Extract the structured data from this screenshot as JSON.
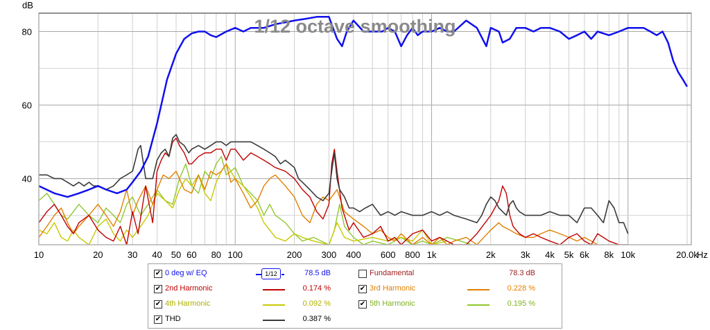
{
  "chart_data": {
    "type": "line",
    "title": "1/12 octave smoothing",
    "ylabel": "dB",
    "xlabel": "Hz",
    "x_scale": "log",
    "xlim": [
      10,
      21000
    ],
    "ylim": [
      22,
      85
    ],
    "y_ticks": [
      "40",
      "60",
      "80"
    ],
    "x_tick_labels": [
      {
        "f": 10,
        "t": "10"
      },
      {
        "f": 20,
        "t": "20"
      },
      {
        "f": 30,
        "t": "30"
      },
      {
        "f": 40,
        "t": "40"
      },
      {
        "f": 50,
        "t": "50"
      },
      {
        "f": 60,
        "t": "60"
      },
      {
        "f": 80,
        "t": "80"
      },
      {
        "f": 100,
        "t": "100"
      },
      {
        "f": 200,
        "t": "200"
      },
      {
        "f": 300,
        "t": "300"
      },
      {
        "f": 400,
        "t": "400"
      },
      {
        "f": 600,
        "t": "600"
      },
      {
        "f": 800,
        "t": "800"
      },
      {
        "f": 1000,
        "t": "1k"
      },
      {
        "f": 2000,
        "t": "2k"
      },
      {
        "f": 3000,
        "t": "3k"
      },
      {
        "f": 4000,
        "t": "4k"
      },
      {
        "f": 5000,
        "t": "5k"
      },
      {
        "f": 6000,
        "t": "6k"
      },
      {
        "f": 8000,
        "t": "8k"
      },
      {
        "f": 10000,
        "t": "10k"
      },
      {
        "f": 20000,
        "t": "20.0k"
      }
    ],
    "grid": true,
    "series": [
      {
        "name": "0 deg w/ EQ",
        "color": "#1010ee",
        "width": 2.5,
        "x": [
          10,
          12,
          14,
          16,
          18,
          20,
          22,
          25,
          28,
          30,
          33,
          36,
          40,
          45,
          50,
          55,
          60,
          65,
          70,
          75,
          80,
          90,
          100,
          110,
          120,
          140,
          160,
          180,
          200,
          230,
          260,
          300,
          330,
          350,
          370,
          400,
          450,
          500,
          560,
          600,
          650,
          700,
          750,
          800,
          850,
          900,
          1000,
          1100,
          1200,
          1300,
          1500,
          1700,
          1900,
          2000,
          2200,
          2300,
          2500,
          2700,
          3000,
          3300,
          3600,
          4000,
          4500,
          5000,
          5500,
          6000,
          6500,
          7000,
          8000,
          9000,
          10000,
          11000,
          12000,
          13000,
          14000,
          15000,
          16000,
          17000,
          18000,
          19000,
          20000
        ],
        "y": [
          38,
          36,
          35,
          36,
          37,
          38,
          37,
          36,
          37,
          39,
          42,
          46,
          55,
          67,
          74,
          78,
          79.5,
          80,
          80,
          79,
          78.5,
          80,
          81,
          80,
          81,
          81,
          82,
          82.5,
          83,
          83.5,
          84,
          84,
          78,
          76,
          80,
          83,
          80,
          80,
          80,
          81,
          80,
          76,
          79,
          81,
          79,
          80,
          80,
          81,
          80,
          80,
          83,
          81,
          76,
          81,
          80,
          77,
          78,
          81,
          81,
          80,
          81,
          81,
          80,
          78,
          79,
          80,
          78,
          80,
          79,
          80,
          81,
          81,
          81,
          80,
          79,
          80,
          77,
          72,
          69,
          67,
          65
        ]
      },
      {
        "name": "THD",
        "color": "#3a3a3a",
        "width": 1.6,
        "x": [
          10,
          11,
          12,
          13,
          14,
          15,
          16,
          17,
          18,
          19,
          20,
          22,
          24,
          26,
          28,
          30,
          31,
          32,
          33,
          35,
          38,
          40,
          42,
          44,
          46,
          48,
          50,
          52,
          55,
          58,
          60,
          65,
          70,
          75,
          80,
          85,
          90,
          95,
          100,
          110,
          120,
          130,
          140,
          150,
          160,
          170,
          180,
          190,
          200,
          210,
          220,
          240,
          260,
          280,
          300,
          310,
          320,
          330,
          340,
          360,
          380,
          400,
          430,
          460,
          500,
          550,
          600,
          650,
          700,
          800,
          900,
          1000,
          1100,
          1200,
          1300,
          1500,
          1700,
          1800,
          1900,
          2000,
          2100,
          2200,
          2300,
          2400,
          2500,
          2600,
          2700,
          2800,
          3000,
          3300,
          3600,
          4000,
          4500,
          5000,
          5500,
          6000,
          6500,
          7000,
          7500,
          8000,
          8500,
          9000,
          9500,
          10000
        ],
        "y": [
          41,
          41,
          40,
          40,
          39,
          38,
          39,
          38,
          39,
          38,
          38,
          37,
          38,
          40,
          41,
          42,
          45,
          48,
          49,
          40,
          40,
          45,
          47,
          48,
          46,
          51,
          52,
          50,
          49,
          47,
          48,
          49,
          48,
          49,
          50,
          50,
          49,
          50,
          50,
          50,
          50,
          49,
          48,
          47,
          46,
          44,
          45,
          44,
          43,
          40,
          39,
          37,
          35,
          34,
          36,
          42,
          47,
          40,
          37,
          35,
          32,
          32,
          31,
          32,
          33,
          30,
          31,
          30,
          31,
          30,
          30,
          31,
          30,
          31,
          30,
          29,
          28,
          30,
          33,
          35,
          34,
          32,
          31,
          30,
          33,
          34,
          32,
          31,
          30,
          30,
          30,
          31,
          30,
          30,
          28,
          32,
          32,
          30,
          28,
          34,
          32,
          28,
          28,
          25
        ]
      },
      {
        "name": "2nd Harmonic",
        "color": "#c00000",
        "width": 1.4,
        "x": [
          10,
          11,
          12,
          13,
          14,
          15,
          16,
          18,
          20,
          22,
          24,
          26,
          28,
          30,
          32,
          35,
          38,
          40,
          42,
          44,
          46,
          48,
          50,
          52,
          55,
          58,
          60,
          65,
          70,
          75,
          80,
          85,
          90,
          95,
          100,
          110,
          120,
          130,
          140,
          150,
          160,
          180,
          200,
          220,
          240,
          260,
          280,
          300,
          310,
          320,
          330,
          350,
          380,
          400,
          450,
          500,
          550,
          600,
          650,
          700,
          800,
          900,
          1000,
          1100,
          1200,
          1300,
          1500,
          1700,
          2000,
          2200,
          2300,
          2400,
          2500,
          2600,
          2800,
          3000,
          3300,
          3600,
          4000,
          4500,
          5000,
          5500,
          6000,
          6500,
          7000,
          8000,
          9000,
          10000
        ],
        "y": [
          28,
          31,
          33,
          30,
          27,
          25,
          28,
          30,
          26,
          24,
          23,
          27,
          22,
          31,
          25,
          38,
          28,
          42,
          45,
          47,
          46,
          50,
          51,
          49,
          47,
          44,
          44,
          46,
          47,
          47,
          48,
          48,
          45,
          48,
          48,
          45,
          47,
          46,
          45,
          44,
          43,
          42,
          40,
          37,
          35,
          31,
          29,
          33,
          44,
          48,
          42,
          32,
          26,
          28,
          24,
          25,
          27,
          23,
          24,
          22,
          25,
          26,
          23,
          24,
          23,
          22,
          22,
          25,
          30,
          34,
          38,
          36,
          30,
          27,
          25,
          24,
          25,
          24,
          23,
          22,
          24,
          25,
          23,
          22,
          25,
          23,
          22,
          22
        ]
      },
      {
        "name": "3rd Harmonic",
        "color": "#e08000",
        "width": 1.4,
        "x": [
          10,
          11,
          12,
          13,
          14,
          15,
          16,
          18,
          20,
          22,
          24,
          26,
          28,
          30,
          32,
          35,
          38,
          40,
          43,
          46,
          50,
          55,
          60,
          65,
          70,
          75,
          80,
          85,
          90,
          95,
          100,
          110,
          120,
          130,
          140,
          150,
          160,
          180,
          200,
          220,
          240,
          260,
          280,
          300,
          330,
          360,
          400,
          450,
          500,
          550,
          600,
          650,
          700,
          800,
          900,
          1000,
          1100,
          1200,
          1300,
          1500,
          1700,
          2000,
          2200,
          2300,
          2500,
          2700,
          3000,
          3300,
          3600,
          4000,
          4500,
          5000,
          5500,
          6000,
          6500,
          7000
        ],
        "y": [
          24,
          27,
          30,
          32,
          28,
          25,
          27,
          30,
          33,
          30,
          27,
          31,
          37,
          30,
          34,
          38,
          33,
          37,
          41,
          40,
          42,
          37,
          36,
          41,
          37,
          42,
          41,
          42,
          44,
          39,
          40,
          36,
          32,
          34,
          38,
          40,
          41,
          38,
          35,
          30,
          28,
          33,
          35,
          34,
          37,
          31,
          29,
          27,
          25,
          26,
          24,
          23,
          25,
          22,
          24,
          22,
          24,
          22,
          23,
          24,
          22,
          26,
          28,
          27,
          26,
          25,
          24,
          24,
          25,
          26,
          25,
          24,
          23,
          24,
          23,
          22
        ]
      },
      {
        "name": "4th Harmonic",
        "color": "#c8c800",
        "width": 1.4,
        "x": [
          10,
          11,
          12,
          13,
          14,
          15,
          16,
          18,
          20,
          22,
          24,
          26,
          28,
          30,
          33,
          36,
          40,
          44,
          48,
          52,
          56,
          60,
          65,
          70,
          75,
          80,
          85,
          90,
          100,
          110,
          120,
          130,
          140,
          150,
          160,
          180,
          200,
          220,
          250,
          300,
          330,
          360,
          400,
          500,
          600,
          700,
          800,
          900,
          1000,
          1200
        ],
        "y": [
          26,
          25,
          28,
          24,
          23,
          26,
          24,
          22,
          27,
          29,
          25,
          23,
          26,
          24,
          27,
          30,
          36,
          34,
          32,
          37,
          40,
          38,
          41,
          36,
          34,
          39,
          42,
          44,
          40,
          38,
          35,
          32,
          28,
          26,
          24,
          23,
          25,
          24,
          23,
          22,
          28,
          24,
          23,
          24,
          23,
          24,
          23,
          26,
          22,
          23
        ]
      },
      {
        "name": "5th Harmonic",
        "color": "#90c830",
        "width": 1.4,
        "x": [
          10,
          11,
          12,
          13,
          14,
          15,
          16,
          18,
          20,
          22,
          24,
          26,
          28,
          30,
          33,
          36,
          40,
          44,
          48,
          52,
          56,
          60,
          65,
          70,
          75,
          80,
          85,
          90,
          100,
          110,
          120,
          130,
          140,
          150,
          160,
          180,
          200,
          220,
          250,
          300,
          320,
          340,
          360,
          400,
          450,
          500,
          600,
          700,
          800,
          900,
          1000,
          1200,
          1400,
          1600
        ],
        "y": [
          34,
          36,
          33,
          30,
          29,
          31,
          33,
          30,
          28,
          32,
          30,
          28,
          33,
          35,
          30,
          33,
          37,
          34,
          33,
          40,
          44,
          38,
          36,
          42,
          40,
          44,
          46,
          41,
          43,
          38,
          36,
          34,
          30,
          33,
          30,
          28,
          25,
          23,
          24,
          22,
          26,
          33,
          27,
          24,
          22,
          23,
          22,
          24,
          22,
          23,
          22,
          24,
          23,
          22
        ]
      }
    ]
  },
  "legend": {
    "items": [
      {
        "label": "0 deg w/ EQ",
        "value": "78.5 dB",
        "color": "#1010ee",
        "checked": true
      },
      {
        "label": "Fundamental",
        "value": "78.3 dB",
        "color": "#a02020",
        "checked": false
      },
      {
        "label": "2nd Harmonic",
        "value": "0.174 %",
        "color": "#c00000",
        "checked": true
      },
      {
        "label": "3rd Harmonic",
        "value": "0.228 %",
        "color": "#e08000",
        "checked": true
      },
      {
        "label": "4th Harmonic",
        "value": "0.092 %",
        "color": "#b0b000",
        "checked": true
      },
      {
        "label": "5th Harmonic",
        "value": "0.195 %",
        "color": "#80b020",
        "checked": true
      },
      {
        "label": "THD",
        "value": "0.387 %",
        "color": "#3a3a3a",
        "checked": true
      }
    ],
    "smoothing_badge": "1/12"
  }
}
